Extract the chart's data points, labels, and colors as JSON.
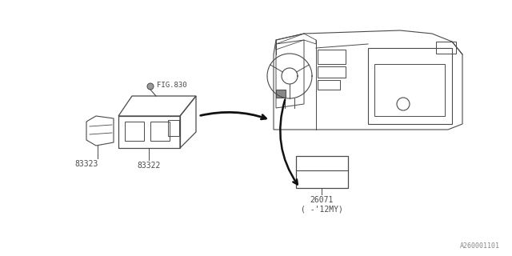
{
  "bg_color": "#ffffff",
  "line_color": "#4a4a4a",
  "text_color": "#4a4a4a",
  "fig_label": "FIG.830",
  "part_labels": [
    "83323",
    "83322",
    "26071\n( -'12MY)"
  ],
  "watermark": "A260001101"
}
